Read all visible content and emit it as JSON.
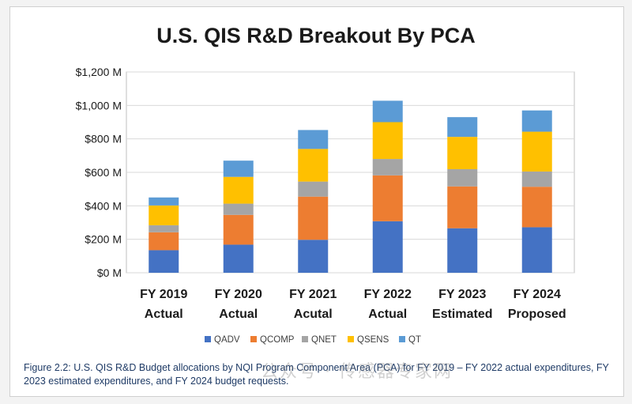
{
  "chart_data": {
    "type": "bar",
    "stacked": true,
    "title": "U.S. QIS R&D Breakout By PCA",
    "xlabel": "",
    "ylabel": "",
    "categories": [
      [
        "FY 2019",
        "Actual"
      ],
      [
        "FY 2020",
        "Actual"
      ],
      [
        "FY 2021",
        "Acutal"
      ],
      [
        "FY 2022",
        "Actual"
      ],
      [
        "FY 2023",
        "Estimated"
      ],
      [
        "FY 2024",
        "Proposed"
      ]
    ],
    "series": [
      {
        "name": "QADV",
        "color": "#4472c4",
        "values": [
          135,
          168,
          197,
          308,
          266,
          272
        ]
      },
      {
        "name": "QCOMP",
        "color": "#ed7d31",
        "values": [
          107,
          178,
          258,
          274,
          250,
          242
        ]
      },
      {
        "name": "QNET",
        "color": "#a5a5a5",
        "values": [
          42,
          67,
          90,
          98,
          103,
          91
        ]
      },
      {
        "name": "QSENS",
        "color": "#ffc000",
        "values": [
          118,
          160,
          195,
          220,
          193,
          238
        ]
      },
      {
        "name": "QT",
        "color": "#5b9bd5",
        "values": [
          48,
          97,
          113,
          128,
          118,
          127
        ]
      }
    ],
    "ylim": [
      0,
      1200
    ],
    "yticks": [
      "$0 M",
      "$200 M",
      "$400 M",
      "$600 M",
      "$800 M",
      "$1,000 M",
      "$1,200 M"
    ],
    "grid": true,
    "legend_position": "bottom"
  },
  "caption": "Figure 2.2: U.S. QIS R&D Budget allocations by NQI Program Component Area (PCA) for FY 2019 – FY 2022 actual expenditures, FY 2023 estimated expenditures, and FY 2024 budget requests.",
  "watermark": "公众号 · 传感器专家网"
}
